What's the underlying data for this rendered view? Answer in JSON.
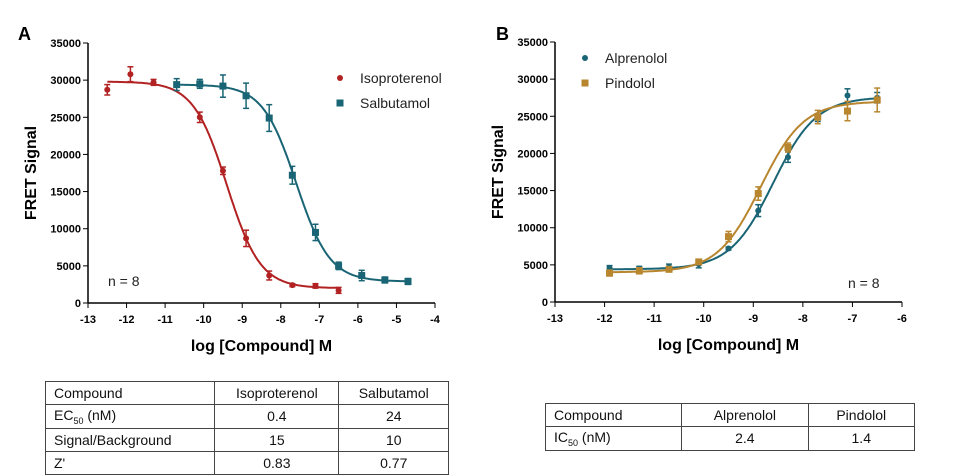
{
  "chart_data": [
    {
      "type": "scatter",
      "panel": "A",
      "title": "",
      "xlabel": "log [Compound] M",
      "ylabel": "FRET Signal",
      "xlim": [
        -13,
        -4
      ],
      "ylim": [
        0,
        35000
      ],
      "xticks": [
        "-13",
        "-12",
        "-11",
        "-10",
        "-9",
        "-8",
        "-7",
        "-6",
        "-5",
        "-4"
      ],
      "yticks": [
        "0",
        "5000",
        "10000",
        "15000",
        "20000",
        "25000",
        "30000",
        "35000"
      ],
      "legend": "top-right",
      "annotation": "n = 8",
      "series": [
        {
          "name": "Isoproterenol",
          "color": "#b22222",
          "marker": "circle",
          "x": [
            -12.5,
            -11.9,
            -11.3,
            -10.1,
            -9.5,
            -8.9,
            -8.3,
            -7.7,
            -7.1,
            -6.5
          ],
          "y": [
            28700,
            30800,
            29700,
            25000,
            17800,
            8700,
            3700,
            2400,
            2300,
            1700
          ],
          "err": [
            700,
            1000,
            400,
            700,
            500,
            1100,
            600,
            200,
            300,
            400
          ],
          "fit": {
            "top": 29800,
            "bottom": 2000,
            "logEC50": -9.4,
            "hill": -1.0
          }
        },
        {
          "name": "Salbutamol",
          "color": "#1a6575",
          "marker": "square",
          "x": [
            -10.7,
            -10.1,
            -9.5,
            -8.9,
            -8.3,
            -7.7,
            -7.1,
            -6.5,
            -5.9,
            -5.3,
            -4.7
          ],
          "y": [
            29400,
            29500,
            29200,
            27900,
            24900,
            17200,
            9500,
            5000,
            3700,
            3100,
            2900
          ],
          "err": [
            800,
            600,
            1500,
            1700,
            1800,
            1200,
            1100,
            500,
            700,
            400,
            400
          ],
          "fit": {
            "top": 29400,
            "bottom": 2900,
            "logEC50": -7.6,
            "hill": -1.0
          }
        }
      ]
    },
    {
      "type": "scatter",
      "panel": "B",
      "title": "",
      "xlabel": "log [Compound] M",
      "ylabel": "FRET Signal",
      "xlim": [
        -13,
        -6
      ],
      "ylim": [
        0,
        35000
      ],
      "xticks": [
        "-13",
        "-12",
        "-11",
        "-10",
        "-9",
        "-8",
        "-7",
        "-6"
      ],
      "yticks": [
        "0",
        "5000",
        "10000",
        "15000",
        "20000",
        "25000",
        "30000",
        "35000"
      ],
      "legend": "top-left",
      "annotation": "n = 8",
      "series": [
        {
          "name": "Alprenolol",
          "color": "#1a6575",
          "marker": "circle",
          "x": [
            -11.9,
            -11.3,
            -10.7,
            -10.1,
            -9.5,
            -8.9,
            -8.3,
            -7.7,
            -7.1,
            -6.5
          ],
          "y": [
            4600,
            4300,
            4700,
            5100,
            7200,
            12300,
            19500,
            24800,
            27800,
            27500
          ],
          "err": [
            300,
            500,
            400,
            500,
            200,
            800,
            700,
            500,
            900,
            700
          ],
          "fit": {
            "top": 27600,
            "bottom": 4400,
            "logEC50": -8.6,
            "hill": 1.0
          }
        },
        {
          "name": "Pindolol",
          "color": "#b8862f",
          "marker": "square",
          "x": [
            -11.9,
            -11.3,
            -10.7,
            -10.1,
            -9.5,
            -8.9,
            -8.3,
            -7.7,
            -7.1,
            -6.5
          ],
          "y": [
            3900,
            4200,
            4400,
            5400,
            8800,
            14600,
            20800,
            24900,
            25700,
            27200
          ],
          "err": [
            400,
            400,
            300,
            300,
            700,
            900,
            600,
            900,
            1300,
            1600
          ],
          "fit": {
            "top": 27000,
            "bottom": 4000,
            "logEC50": -8.85,
            "hill": 1.0
          }
        }
      ]
    }
  ],
  "tableA": {
    "header": [
      "Compound",
      "Isoproterenol",
      "Salbutamol"
    ],
    "rows": [
      [
        "EC",
        "50",
        " (nM)",
        "0.4",
        "24"
      ],
      [
        "Signal/Background",
        "15",
        "10"
      ],
      [
        "Z'",
        "0.83",
        "0.77"
      ]
    ]
  },
  "tableB": {
    "header": [
      "Compound",
      "Alprenolol",
      "Pindolol"
    ],
    "rows": [
      [
        "IC",
        "50",
        " (nM)",
        "2.4",
        "1.4"
      ]
    ]
  }
}
